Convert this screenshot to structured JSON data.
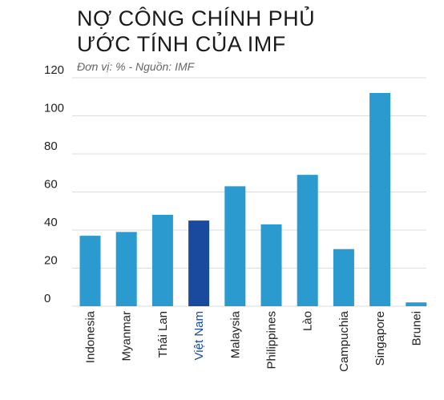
{
  "chart_data": {
    "type": "bar",
    "title_lines": [
      "NỢ CÔNG CHÍNH PHỦ",
      "ƯỚC TÍNH CỦA IMF"
    ],
    "subtitle": "Đơn vị: %   -   Nguồn: IMF",
    "categories": [
      "Indonesia",
      "Myanmar",
      "Thái Lan",
      "Việt Nam",
      "Malaysia",
      "Philippines",
      "Lào",
      "Campuchia",
      "Singapore",
      "Brunei"
    ],
    "values": [
      37,
      39,
      48,
      45,
      63,
      43,
      69,
      30,
      112,
      2
    ],
    "highlight_index": 3,
    "colors": {
      "bar": "#2b9ace",
      "highlight_bar": "#1a4a9e",
      "highlight_label": "#1a4a9e",
      "grid": "#dcdcdc"
    },
    "ylim": [
      0,
      120
    ],
    "yticks": [
      0,
      20,
      40,
      60,
      80,
      100,
      120
    ],
    "grid": true,
    "legend": "none"
  }
}
